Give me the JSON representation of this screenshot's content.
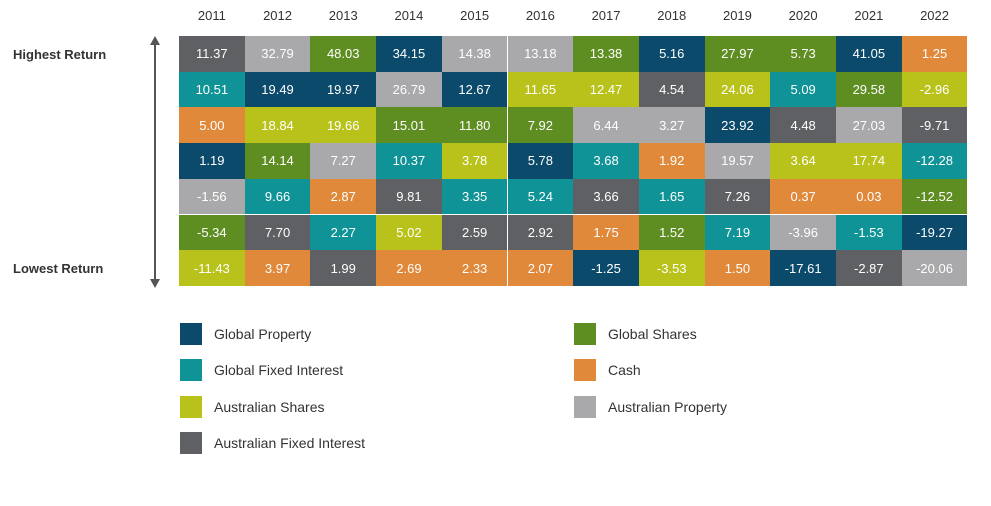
{
  "chart_data": {
    "type": "table",
    "title": "",
    "labels": {
      "top": "Highest Return",
      "bottom": "Lowest Return"
    },
    "years": [
      "2011",
      "2012",
      "2013",
      "2014",
      "2015",
      "2016",
      "2017",
      "2018",
      "2019",
      "2020",
      "2021",
      "2022"
    ],
    "asset_classes": [
      {
        "key": "gp",
        "name": "Global Property",
        "color": "#0b4a6a"
      },
      {
        "key": "gs",
        "name": "Global Shares",
        "color": "#5e8d22"
      },
      {
        "key": "gfi",
        "name": "Global Fixed Interest",
        "color": "#0f9396"
      },
      {
        "key": "cash",
        "name": "Cash",
        "color": "#e0893a"
      },
      {
        "key": "as",
        "name": "Australian Shares",
        "color": "#b9c21a"
      },
      {
        "key": "ap",
        "name": "Australian Property",
        "color": "#a9a9ab"
      },
      {
        "key": "afi",
        "name": "Australian Fixed Interest",
        "color": "#5f6063"
      }
    ],
    "columns": [
      {
        "year": "2011",
        "cells": [
          {
            "value": "11.37",
            "asset": "afi"
          },
          {
            "value": "10.51",
            "asset": "gfi"
          },
          {
            "value": "5.00",
            "asset": "cash"
          },
          {
            "value": "1.19",
            "asset": "gp"
          },
          {
            "value": "-1.56",
            "asset": "ap"
          },
          {
            "value": "-5.34",
            "asset": "gs"
          },
          {
            "value": "-11.43",
            "asset": "as"
          }
        ]
      },
      {
        "year": "2012",
        "cells": [
          {
            "value": "32.79",
            "asset": "ap"
          },
          {
            "value": "19.49",
            "asset": "gp"
          },
          {
            "value": "18.84",
            "asset": "as"
          },
          {
            "value": "14.14",
            "asset": "gs"
          },
          {
            "value": "9.66",
            "asset": "gfi"
          },
          {
            "value": "7.70",
            "asset": "afi"
          },
          {
            "value": "3.97",
            "asset": "cash"
          }
        ]
      },
      {
        "year": "2013",
        "cells": [
          {
            "value": "48.03",
            "asset": "gs"
          },
          {
            "value": "19.97",
            "asset": "gp"
          },
          {
            "value": "19.66",
            "asset": "as"
          },
          {
            "value": "7.27",
            "asset": "ap"
          },
          {
            "value": "2.87",
            "asset": "cash"
          },
          {
            "value": "2.27",
            "asset": "gfi"
          },
          {
            "value": "1.99",
            "asset": "afi"
          }
        ]
      },
      {
        "year": "2014",
        "cells": [
          {
            "value": "34.15",
            "asset": "gp"
          },
          {
            "value": "26.79",
            "asset": "ap"
          },
          {
            "value": "15.01",
            "asset": "gs"
          },
          {
            "value": "10.37",
            "asset": "gfi"
          },
          {
            "value": "9.81",
            "asset": "afi"
          },
          {
            "value": "5.02",
            "asset": "as"
          },
          {
            "value": "2.69",
            "asset": "cash"
          }
        ]
      },
      {
        "year": "2015",
        "cells": [
          {
            "value": "14.38",
            "asset": "ap"
          },
          {
            "value": "12.67",
            "asset": "gp"
          },
          {
            "value": "11.80",
            "asset": "gs"
          },
          {
            "value": "3.78",
            "asset": "as"
          },
          {
            "value": "3.35",
            "asset": "gfi"
          },
          {
            "value": "2.59",
            "asset": "afi"
          },
          {
            "value": "2.33",
            "asset": "cash"
          }
        ]
      },
      {
        "year": "2016",
        "cells": [
          {
            "value": "13.18",
            "asset": "ap"
          },
          {
            "value": "11.65",
            "asset": "as"
          },
          {
            "value": "7.92",
            "asset": "gs"
          },
          {
            "value": "5.78",
            "asset": "gp"
          },
          {
            "value": "5.24",
            "asset": "gfi"
          },
          {
            "value": "2.92",
            "asset": "afi"
          },
          {
            "value": "2.07",
            "asset": "cash"
          }
        ]
      },
      {
        "year": "2017",
        "cells": [
          {
            "value": "13.38",
            "asset": "gs"
          },
          {
            "value": "12.47",
            "asset": "as"
          },
          {
            "value": "6.44",
            "asset": "ap"
          },
          {
            "value": "3.68",
            "asset": "gfi"
          },
          {
            "value": "3.66",
            "asset": "afi"
          },
          {
            "value": "1.75",
            "asset": "cash"
          },
          {
            "value": "-1.25",
            "asset": "gp"
          }
        ]
      },
      {
        "year": "2018",
        "cells": [
          {
            "value": "5.16",
            "asset": "gp"
          },
          {
            "value": "4.54",
            "asset": "afi"
          },
          {
            "value": "3.27",
            "asset": "ap"
          },
          {
            "value": "1.92",
            "asset": "cash"
          },
          {
            "value": "1.65",
            "asset": "gfi"
          },
          {
            "value": "1.52",
            "asset": "gs"
          },
          {
            "value": "-3.53",
            "asset": "as"
          }
        ]
      },
      {
        "year": "2019",
        "cells": [
          {
            "value": "27.97",
            "asset": "gs"
          },
          {
            "value": "24.06",
            "asset": "as"
          },
          {
            "value": "23.92",
            "asset": "gp"
          },
          {
            "value": "19.57",
            "asset": "ap"
          },
          {
            "value": "7.26",
            "asset": "afi"
          },
          {
            "value": "7.19",
            "asset": "gfi"
          },
          {
            "value": "1.50",
            "asset": "cash"
          }
        ]
      },
      {
        "year": "2020",
        "cells": [
          {
            "value": "5.73",
            "asset": "gs"
          },
          {
            "value": "5.09",
            "asset": "gfi"
          },
          {
            "value": "4.48",
            "asset": "afi"
          },
          {
            "value": "3.64",
            "asset": "as"
          },
          {
            "value": "0.37",
            "asset": "cash"
          },
          {
            "value": "-3.96",
            "asset": "ap"
          },
          {
            "value": "-17.61",
            "asset": "gp"
          }
        ]
      },
      {
        "year": "2021",
        "cells": [
          {
            "value": "41.05",
            "asset": "gp"
          },
          {
            "value": "29.58",
            "asset": "gs"
          },
          {
            "value": "27.03",
            "asset": "ap"
          },
          {
            "value": "17.74",
            "asset": "as"
          },
          {
            "value": "0.03",
            "asset": "cash"
          },
          {
            "value": "-1.53",
            "asset": "gfi"
          },
          {
            "value": "-2.87",
            "asset": "afi"
          }
        ]
      },
      {
        "year": "2022",
        "cells": [
          {
            "value": "1.25",
            "asset": "cash"
          },
          {
            "value": "-2.96",
            "asset": "as"
          },
          {
            "value": "-9.71",
            "asset": "afi"
          },
          {
            "value": "-12.28",
            "asset": "gfi"
          },
          {
            "value": "-12.52",
            "asset": "gs"
          },
          {
            "value": "-19.27",
            "asset": "gp"
          },
          {
            "value": "-20.06",
            "asset": "ap"
          }
        ]
      }
    ]
  }
}
